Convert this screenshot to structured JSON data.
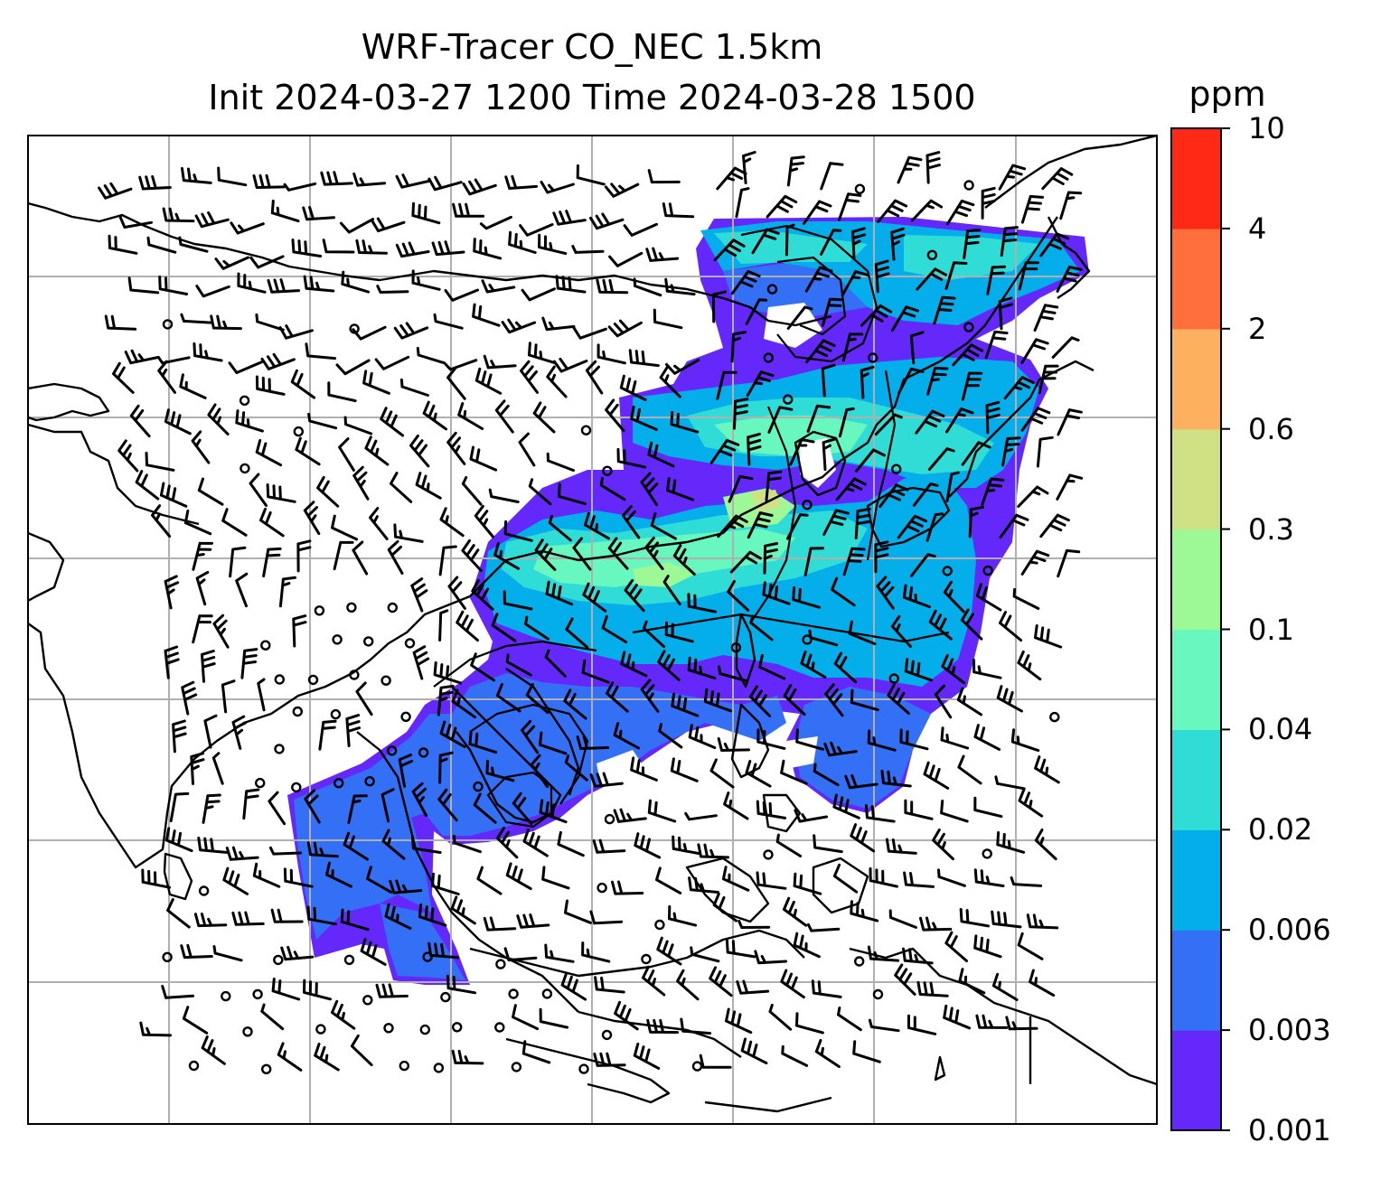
{
  "title": {
    "line1": "WRF-Tracer CO_NEC 1.5km",
    "line2": "Init 2024-03-27 1200 Time 2024-03-28 1500"
  },
  "colorbar": {
    "unit": "ppm",
    "tick_labels": [
      "0.001",
      "0.003",
      "0.006",
      "0.02",
      "0.04",
      "0.1",
      "0.3",
      "0.6",
      "2",
      "4",
      "10"
    ],
    "colors": [
      "#6428fa",
      "#3370f5",
      "#04aeea",
      "#2fdcd6",
      "#69f7c0",
      "#9cf995",
      "#cfe184",
      "#fcb060",
      "#fe6f3c",
      "#ff2916"
    ]
  },
  "map": {
    "field": "CO tracer concentration",
    "overlays": [
      "coastlines",
      "gridlines",
      "wind-barbs",
      "contour-lines"
    ],
    "region": "East and Southeast Asia"
  }
}
